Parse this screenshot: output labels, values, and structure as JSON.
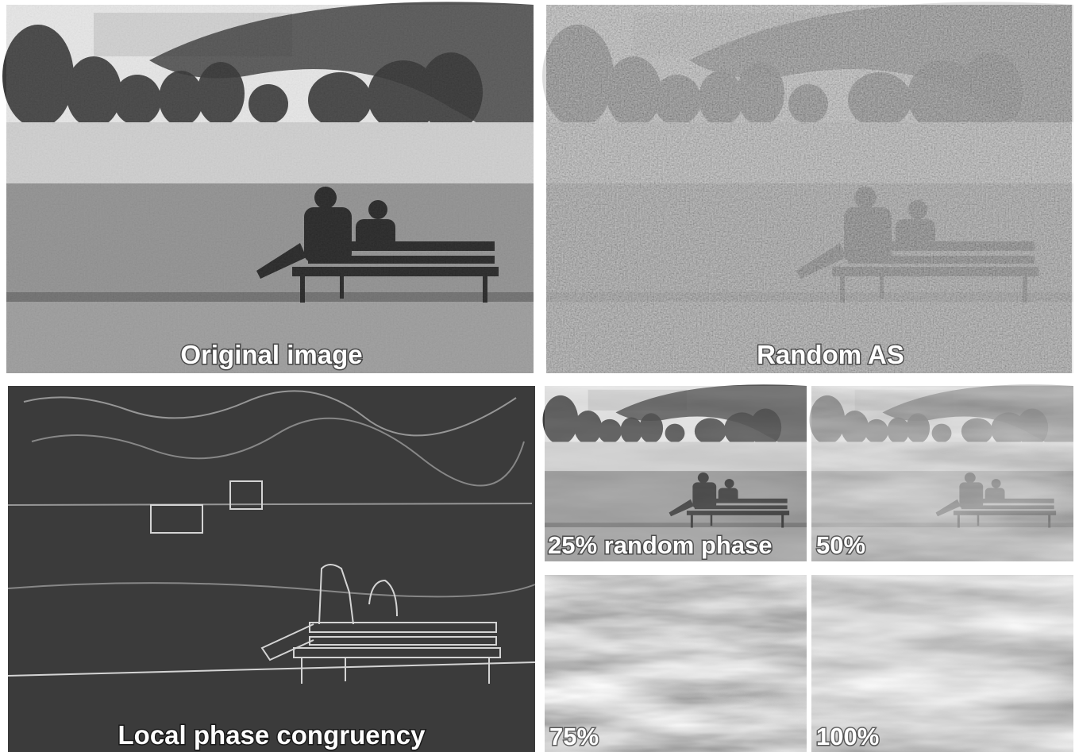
{
  "panels": [
    {
      "label": "Original image"
    },
    {
      "label": "Random AS"
    },
    {
      "label": "Local phase congruency"
    },
    {
      "label": "25% random phase"
    },
    {
      "label": "50%"
    },
    {
      "label": "75%"
    },
    {
      "label": "100%"
    }
  ]
}
